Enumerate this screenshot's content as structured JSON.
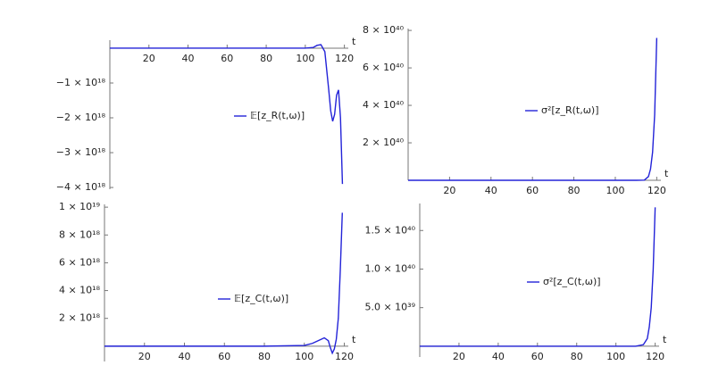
{
  "chart_data": [
    {
      "type": "line",
      "x_label": "t",
      "xlim": [
        0,
        122
      ],
      "ylim": [
        -4.05e+18,
        2.3e+17
      ],
      "xticks": [
        20,
        40,
        60,
        80,
        100,
        120
      ],
      "yticks": [
        {
          "value": -1e+18,
          "label": "−1 × 10¹⁸"
        },
        {
          "value": -2e+18,
          "label": "−2 × 10¹⁸"
        },
        {
          "value": -3e+18,
          "label": "−3 × 10¹⁸"
        },
        {
          "value": -4e+18,
          "label": "−4 × 10¹⁸"
        }
      ],
      "series": [
        {
          "name": "𝔼[z_R(t,ω)]",
          "color": "#2323d8",
          "x": [
            0,
            20,
            40,
            60,
            80,
            100,
            104,
            106,
            108,
            110,
            112,
            113,
            114,
            115,
            116,
            117,
            118,
            119
          ],
          "values": [
            0,
            0,
            0,
            0,
            0,
            0,
            2e+16,
            8e+16,
            1e+17,
            -1e+17,
            -1.2e+18,
            -1.8e+18,
            -2.1e+18,
            -1.9e+18,
            -1.35e+18,
            -1.2e+18,
            -2e+18,
            -3.9e+18
          ]
        }
      ]
    },
    {
      "type": "line",
      "x_label": "t",
      "xlim": [
        0,
        122
      ],
      "ylim": [
        0,
        8.1e+40
      ],
      "xticks": [
        20,
        40,
        60,
        80,
        100,
        120
      ],
      "yticks": [
        {
          "value": 2e+40,
          "label": "2 × 10⁴⁰"
        },
        {
          "value": 4e+40,
          "label": "4 × 10⁴⁰"
        },
        {
          "value": 6e+40,
          "label": "6 × 10⁴⁰"
        },
        {
          "value": 8e+40,
          "label": "8 × 10⁴⁰"
        }
      ],
      "series": [
        {
          "name": "σ²[z_R(t,ω)]",
          "color": "#2323d8",
          "x": [
            0,
            20,
            40,
            60,
            80,
            100,
            110,
            114,
            116,
            117,
            118,
            119,
            120
          ],
          "values": [
            0,
            0,
            0,
            0,
            0,
            0,
            0,
            1e+38,
            2e+39,
            6e+39,
            1.5e+40,
            3.5e+40,
            7.6e+40
          ]
        }
      ]
    },
    {
      "type": "line",
      "x_label": "t",
      "xlim": [
        0,
        122
      ],
      "ylim": [
        -1.1e+18,
        1.02e+19
      ],
      "xticks": [
        20,
        40,
        60,
        80,
        100,
        120
      ],
      "yticks": [
        {
          "value": 2e+18,
          "label": "2 × 10¹⁸"
        },
        {
          "value": 4e+18,
          "label": "4 × 10¹⁸"
        },
        {
          "value": 6e+18,
          "label": "6 × 10¹⁸"
        },
        {
          "value": 8e+18,
          "label": "8 × 10¹⁸"
        },
        {
          "value": 1e+19,
          "label": "1 × 10¹⁹"
        }
      ],
      "series": [
        {
          "name": "𝔼[z_C(t,ω)]",
          "color": "#2323d8",
          "x": [
            0,
            20,
            40,
            60,
            80,
            100,
            104,
            107,
            110,
            112,
            113,
            114,
            115,
            116,
            117,
            118,
            119
          ],
          "values": [
            0,
            0,
            0,
            0,
            0,
            5e+16,
            2e+17,
            4e+17,
            6e+17,
            4e+17,
            -1e+17,
            -5e+17,
            -2e+17,
            5e+17,
            2e+18,
            5.5e+18,
            9.6e+18
          ]
        }
      ]
    },
    {
      "type": "line",
      "x_label": "t",
      "xlim": [
        0,
        122
      ],
      "ylim": [
        -1.4e+39,
        1.85e+40
      ],
      "xticks": [
        20,
        40,
        60,
        80,
        100,
        120
      ],
      "yticks": [
        {
          "value": 5e+39,
          "label": "5.0 × 10³⁹"
        },
        {
          "value": 1e+40,
          "label": "1.0 × 10⁴⁰"
        },
        {
          "value": 1.5e+40,
          "label": "1.5 × 10⁴⁰"
        }
      ],
      "series": [
        {
          "name": "σ²[z_C(t,ω)]",
          "color": "#2323d8",
          "x": [
            0,
            20,
            40,
            60,
            80,
            100,
            110,
            114,
            116,
            117,
            118,
            119,
            120
          ],
          "values": [
            0,
            0,
            0,
            0,
            0,
            0,
            0,
            2e+38,
            1e+39,
            2.5e+39,
            5e+39,
            1e+40,
            1.8e+40
          ]
        }
      ]
    }
  ]
}
